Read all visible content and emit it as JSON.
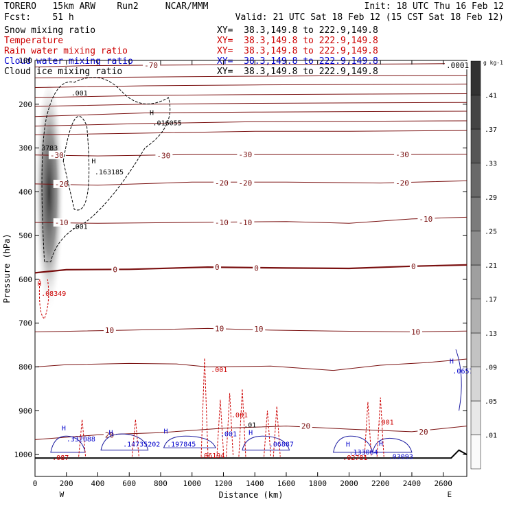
{
  "header": {
    "model": "TORERO   15km ARW    Run2     NCAR/MMM",
    "init": "Init: 18 UTC Thu 16 Feb 12",
    "fcst": "Fcst:    51 h",
    "valid": "Valid: 21 UTC Sat 18 Feb 12 (15 CST Sat 18 Feb 12)",
    "fields": [
      {
        "label": "Snow mixing ratio",
        "xy": "XY=  38.3,149.8 to 222.9,149.8",
        "color": "#000000"
      },
      {
        "label": "Temperature",
        "xy": "XY=  38.3,149.8 to 222.9,149.8",
        "color": "#cc0000"
      },
      {
        "label": "Rain water mixing ratio",
        "xy": "XY=  38.3,149.8 to 222.9,149.8",
        "color": "#cc0000"
      },
      {
        "label": "Cloud water mixing ratio",
        "xy": "XY=  38.3,149.8 to 222.9,149.8",
        "color": "#0000cc"
      },
      {
        "label": "Cloud ice mixing ratio",
        "xy": "XY=  38.3,149.8 to 222.9,149.8",
        "color": "#000000"
      }
    ]
  },
  "chart_data": {
    "type": "contour-cross-section",
    "xlabel": "Distance (km)",
    "ylabel": "Pressure (hPa)",
    "xlim": [
      0,
      2750
    ],
    "ylim": [
      100,
      1050
    ],
    "x_ticks": [
      0,
      200,
      400,
      600,
      800,
      1000,
      1200,
      1400,
      1600,
      1800,
      2000,
      2200,
      2400,
      2600
    ],
    "y_ticks": [
      100,
      200,
      300,
      400,
      500,
      600,
      700,
      800,
      900,
      1000
    ],
    "x_end_labels": {
      "left": "W",
      "right": "E"
    },
    "colorbar": {
      "unit": "g kg-1",
      "labels": [
        ".01",
        ".05",
        ".09",
        ".13",
        ".17",
        ".21",
        ".25",
        ".29",
        ".33",
        ".37",
        ".41"
      ],
      "top_label": ".0001"
    },
    "temperature_contours": [
      {
        "label": "-70",
        "values": [
          [
            0,
            115
          ],
          [
            300,
            112
          ],
          [
            700,
            111
          ],
          [
            1200,
            110
          ],
          [
            1800,
            109
          ],
          [
            2400,
            108
          ],
          [
            2750,
            107
          ]
        ],
        "label_pts": [
          [
            700,
            111
          ]
        ]
      },
      {
        "label": "",
        "values": [
          [
            0,
            140
          ],
          [
            700,
            138
          ],
          [
            1400,
            136
          ],
          [
            2000,
            135
          ],
          [
            2750,
            134
          ]
        ],
        "label_pts": []
      },
      {
        "label": "",
        "values": [
          [
            0,
            162
          ],
          [
            700,
            158
          ],
          [
            1400,
            156
          ],
          [
            2000,
            155
          ],
          [
            2750,
            154
          ]
        ],
        "label_pts": []
      },
      {
        "label": "",
        "values": [
          [
            0,
            185
          ],
          [
            700,
            180
          ],
          [
            1400,
            178
          ],
          [
            2000,
            177
          ],
          [
            2750,
            176
          ]
        ],
        "label_pts": []
      },
      {
        "label": "",
        "values": [
          [
            0,
            205
          ],
          [
            700,
            200
          ],
          [
            1400,
            198
          ],
          [
            2000,
            197
          ],
          [
            2750,
            196
          ]
        ],
        "label_pts": []
      },
      {
        "label": "",
        "values": [
          [
            0,
            228
          ],
          [
            700,
            220
          ],
          [
            1400,
            218
          ],
          [
            2000,
            217
          ],
          [
            2750,
            216
          ]
        ],
        "label_pts": []
      },
      {
        "label": "",
        "values": [
          [
            0,
            250
          ],
          [
            700,
            244
          ],
          [
            1400,
            240
          ],
          [
            2000,
            239
          ],
          [
            2750,
            238
          ]
        ],
        "label_pts": []
      },
      {
        "label": "",
        "values": [
          [
            0,
            270
          ],
          [
            700,
            266
          ],
          [
            1400,
            262
          ],
          [
            2000,
            262
          ],
          [
            2750,
            260
          ]
        ],
        "label_pts": []
      },
      {
        "label": "-30",
        "values": [
          [
            0,
            316
          ],
          [
            400,
            318
          ],
          [
            1000,
            315
          ],
          [
            1600,
            315
          ],
          [
            2200,
            315
          ],
          [
            2750,
            314
          ]
        ],
        "label_pts": [
          [
            100,
            316
          ],
          [
            780,
            317
          ],
          [
            1300,
            315
          ],
          [
            2300,
            315
          ]
        ]
      },
      {
        "label": "-20",
        "values": [
          [
            0,
            382
          ],
          [
            400,
            385
          ],
          [
            1000,
            378
          ],
          [
            1600,
            378
          ],
          [
            2200,
            380
          ],
          [
            2750,
            375
          ]
        ],
        "label_pts": [
          [
            130,
            382
          ],
          [
            1150,
            380
          ],
          [
            1300,
            380
          ],
          [
            2300,
            380
          ]
        ]
      },
      {
        "label": "-10",
        "values": [
          [
            0,
            470
          ],
          [
            400,
            472
          ],
          [
            1000,
            470
          ],
          [
            1600,
            468
          ],
          [
            2000,
            472
          ],
          [
            2400,
            462
          ],
          [
            2750,
            458
          ]
        ],
        "label_pts": [
          [
            130,
            470
          ],
          [
            1150,
            470
          ],
          [
            1300,
            470
          ],
          [
            2450,
            462
          ]
        ]
      },
      {
        "label": "0",
        "values": [
          [
            0,
            585
          ],
          [
            200,
            578
          ],
          [
            600,
            577
          ],
          [
            1100,
            572
          ],
          [
            1600,
            574
          ],
          [
            2000,
            575
          ],
          [
            2400,
            570
          ],
          [
            2750,
            567
          ]
        ],
        "label_pts": [
          [
            500,
            577
          ],
          [
            1150,
            572
          ],
          [
            1400,
            574
          ],
          [
            2400,
            570
          ]
        ],
        "bold": true
      },
      {
        "label": "10",
        "values": [
          [
            0,
            720
          ],
          [
            600,
            716
          ],
          [
            1100,
            712
          ],
          [
            1500,
            716
          ],
          [
            1900,
            718
          ],
          [
            2400,
            720
          ],
          [
            2750,
            718
          ]
        ],
        "label_pts": [
          [
            450,
            716
          ],
          [
            1150,
            712
          ],
          [
            1400,
            713
          ],
          [
            2400,
            720
          ]
        ]
      },
      {
        "label": "",
        "values": [
          [
            0,
            800
          ],
          [
            200,
            795
          ],
          [
            600,
            792
          ],
          [
            900,
            793
          ],
          [
            1100,
            800
          ],
          [
            1500,
            798
          ],
          [
            1900,
            808
          ],
          [
            2200,
            796
          ],
          [
            2500,
            790
          ],
          [
            2750,
            782
          ]
        ],
        "label_pts": []
      },
      {
        "label": "20",
        "values": [
          [
            0,
            966
          ],
          [
            400,
            955
          ],
          [
            800,
            950
          ],
          [
            1200,
            940
          ],
          [
            1600,
            935
          ],
          [
            2000,
            942
          ],
          [
            2400,
            948
          ],
          [
            2750,
            935
          ]
        ],
        "label_pts": [
          [
            450,
            955
          ],
          [
            1700,
            935
          ],
          [
            2450,
            948
          ]
        ]
      }
    ],
    "annotations": [
      {
        "text": ".001",
        "x": 230,
        "y": 180,
        "color": "#000000"
      },
      {
        "text": "H",
        "x": 730,
        "y": 225,
        "color": "#000000"
      },
      {
        "text": ".016055",
        "x": 750,
        "y": 248,
        "color": "#000000"
      },
      {
        "text": "H",
        "x": 360,
        "y": 335,
        "color": "#000000"
      },
      {
        "text": ".163185",
        "x": 380,
        "y": 360,
        "color": "#000000"
      },
      {
        "text": ".001",
        "x": 230,
        "y": 485,
        "color": "#000000"
      },
      {
        "text": "3783",
        "x": 40,
        "y": 305,
        "color": "#000000"
      },
      {
        "text": "H",
        "x": 15,
        "y": 615,
        "color": "#cc0000"
      },
      {
        "text": ".08349",
        "x": 40,
        "y": 638,
        "color": "#cc0000"
      },
      {
        "text": ".001",
        "x": 1120,
        "y": 812,
        "color": "#cc0000"
      },
      {
        "text": "H",
        "x": 2640,
        "y": 792,
        "color": "#0000cc"
      },
      {
        "text": ".0657",
        "x": 2660,
        "y": 815,
        "color": "#0000cc"
      },
      {
        "text": ".001",
        "x": 1250,
        "y": 915,
        "color": "#cc0000"
      },
      {
        "text": ".001",
        "x": 2180,
        "y": 932,
        "color": "#cc0000"
      },
      {
        "text": "H",
        "x": 170,
        "y": 945,
        "color": "#0000cc"
      },
      {
        "text": ".332088",
        "x": 200,
        "y": 970,
        "color": "#0000cc"
      },
      {
        "text": ".087",
        "x": 110,
        "y": 1012,
        "color": "#cc0000"
      },
      {
        "text": "H",
        "x": 470,
        "y": 955,
        "color": "#0000cc"
      },
      {
        "text": ".14735202",
        "x": 560,
        "y": 982,
        "color": "#0000cc"
      },
      {
        "text": "H",
        "x": 820,
        "y": 952,
        "color": "#0000cc"
      },
      {
        "text": ".197845",
        "x": 840,
        "y": 982,
        "color": "#0000cc"
      },
      {
        "text": ".06194",
        "x": 1050,
        "y": 1008,
        "color": "#cc0000"
      },
      {
        "text": ".001",
        "x": 1180,
        "y": 958,
        "color": "#0000cc"
      },
      {
        "text": "H",
        "x": 1360,
        "y": 955,
        "color": "#0000cc"
      },
      {
        "text": ".01",
        "x": 1330,
        "y": 938,
        "color": "#000000"
      },
      {
        "text": ".06887",
        "x": 1490,
        "y": 982,
        "color": "#0000cc"
      },
      {
        "text": "H",
        "x": 1980,
        "y": 982,
        "color": "#0000cc"
      },
      {
        "text": ".133064",
        "x": 2000,
        "y": 1000,
        "color": "#0000cc"
      },
      {
        "text": ".02781",
        "x": 1960,
        "y": 1012,
        "color": "#cc0000"
      },
      {
        "text": "H",
        "x": 2190,
        "y": 980,
        "color": "#0000cc"
      },
      {
        "text": ".03093",
        "x": 2250,
        "y": 1010,
        "color": "#0000cc"
      }
    ]
  }
}
